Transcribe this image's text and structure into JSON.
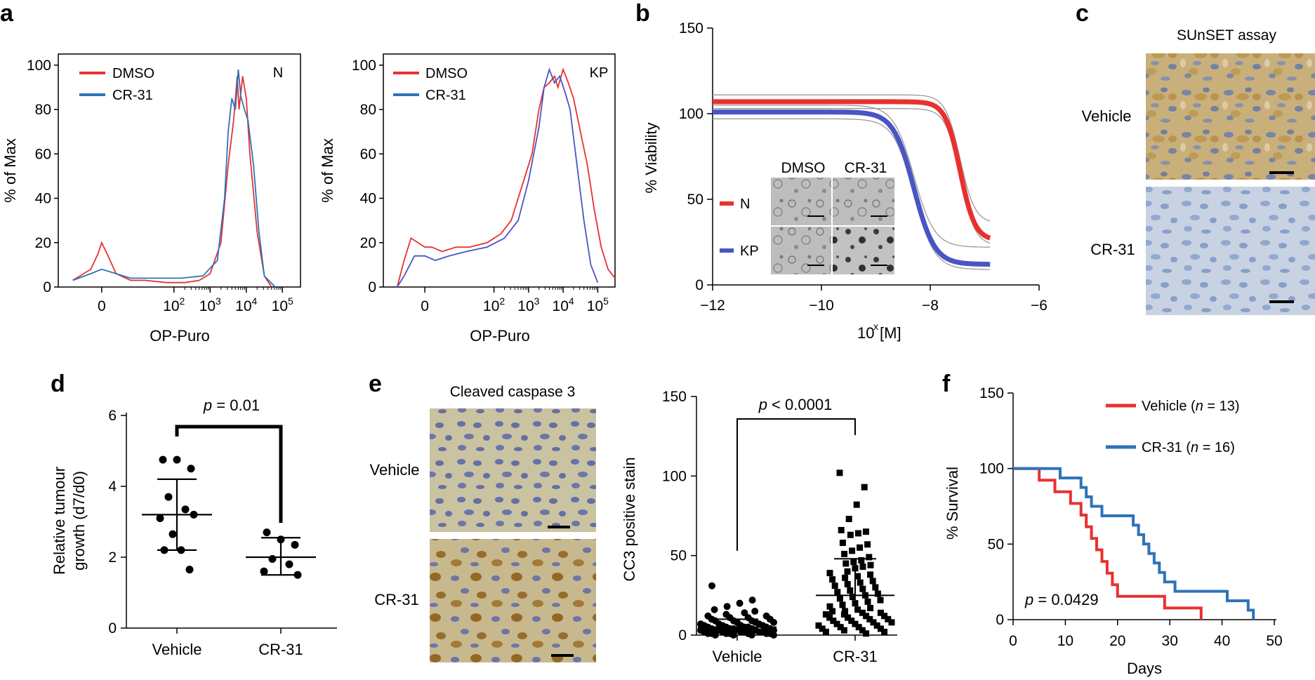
{
  "panels": {
    "a": "a",
    "b": "b",
    "c": "c",
    "d": "d",
    "e": "e",
    "f": "f"
  },
  "colors": {
    "red": "#e8312f",
    "blue": "#2e73b8",
    "purple": "#4a55c4",
    "grey": "#9a9a9a"
  },
  "chart_data": [
    {
      "id": "a1",
      "type": "line",
      "title": "N",
      "xlabel": "OP-Puro",
      "ylabel": "% of Max",
      "xticks": [
        "0",
        "10^2",
        "10^3",
        "10^4",
        "10^5"
      ],
      "yticks": [
        0,
        20,
        40,
        60,
        80,
        100
      ],
      "ylim": [
        0,
        105
      ],
      "series": [
        {
          "name": "DMSO",
          "color": "#e8312f",
          "points": [
            [
              -0.8,
              3
            ],
            [
              -0.3,
              8
            ],
            [
              -0.1,
              15
            ],
            [
              0,
              20
            ],
            [
              0.15,
              15
            ],
            [
              0.4,
              6
            ],
            [
              0.8,
              3
            ],
            [
              1.2,
              3
            ],
            [
              1.8,
              2
            ],
            [
              2.3,
              2
            ],
            [
              2.7,
              3
            ],
            [
              3.0,
              6
            ],
            [
              3.3,
              20
            ],
            [
              3.5,
              55
            ],
            [
              3.65,
              75
            ],
            [
              3.75,
              95
            ],
            [
              3.8,
              80
            ],
            [
              3.9,
              95
            ],
            [
              4.0,
              85
            ],
            [
              4.1,
              60
            ],
            [
              4.3,
              25
            ],
            [
              4.5,
              5
            ],
            [
              4.7,
              0
            ]
          ]
        },
        {
          "name": "CR-31",
          "color": "#2e73b8",
          "points": [
            [
              -0.8,
              3
            ],
            [
              -0.3,
              6
            ],
            [
              0,
              8
            ],
            [
              0.4,
              6
            ],
            [
              0.8,
              4
            ],
            [
              1.5,
              4
            ],
            [
              2.2,
              4
            ],
            [
              2.8,
              5
            ],
            [
              3.2,
              12
            ],
            [
              3.4,
              40
            ],
            [
              3.5,
              70
            ],
            [
              3.6,
              85
            ],
            [
              3.7,
              80
            ],
            [
              3.78,
              98
            ],
            [
              3.85,
              86
            ],
            [
              3.95,
              80
            ],
            [
              4.05,
              75
            ],
            [
              4.2,
              55
            ],
            [
              4.35,
              25
            ],
            [
              4.5,
              5
            ],
            [
              4.8,
              0
            ]
          ]
        }
      ]
    },
    {
      "id": "a2",
      "type": "line",
      "title": "KP",
      "xlabel": "OP-Puro",
      "ylabel": "% of Max",
      "xticks": [
        "0",
        "10^2",
        "10^3",
        "10^4",
        "10^5"
      ],
      "yticks": [
        0,
        20,
        40,
        60,
        80,
        100
      ],
      "ylim": [
        0,
        105
      ],
      "series": [
        {
          "name": "DMSO",
          "color": "#e8312f",
          "points": [
            [
              -0.8,
              0
            ],
            [
              -0.6,
              12
            ],
            [
              -0.4,
              22
            ],
            [
              -0.2,
              20
            ],
            [
              0,
              18
            ],
            [
              0.2,
              18
            ],
            [
              0.5,
              16
            ],
            [
              0.9,
              18
            ],
            [
              1.3,
              18
            ],
            [
              1.8,
              20
            ],
            [
              2.2,
              24
            ],
            [
              2.5,
              30
            ],
            [
              2.8,
              45
            ],
            [
              3.1,
              60
            ],
            [
              3.3,
              80
            ],
            [
              3.45,
              90
            ],
            [
              3.6,
              92
            ],
            [
              3.75,
              95
            ],
            [
              3.85,
              90
            ],
            [
              4.0,
              98
            ],
            [
              4.15,
              92
            ],
            [
              4.3,
              85
            ],
            [
              4.5,
              70
            ],
            [
              4.7,
              55
            ],
            [
              4.9,
              35
            ],
            [
              5.1,
              18
            ],
            [
              5.3,
              8
            ],
            [
              5.5,
              4
            ]
          ]
        },
        {
          "name": "CR-31",
          "color": "#4a55c4",
          "points": [
            [
              -0.8,
              0
            ],
            [
              -0.6,
              5
            ],
            [
              -0.3,
              14
            ],
            [
              0,
              14
            ],
            [
              0.3,
              12
            ],
            [
              0.7,
              14
            ],
            [
              1.2,
              16
            ],
            [
              1.8,
              18
            ],
            [
              2.3,
              22
            ],
            [
              2.7,
              30
            ],
            [
              3.0,
              48
            ],
            [
              3.3,
              72
            ],
            [
              3.45,
              90
            ],
            [
              3.6,
              98
            ],
            [
              3.75,
              92
            ],
            [
              3.9,
              95
            ],
            [
              4.05,
              88
            ],
            [
              4.2,
              80
            ],
            [
              4.4,
              55
            ],
            [
              4.6,
              30
            ],
            [
              4.8,
              10
            ],
            [
              5.0,
              2
            ]
          ]
        }
      ]
    },
    {
      "id": "b",
      "type": "line",
      "xlabel_base": "10",
      "xlabel_sup": "x",
      "xlabel_tail": "[M]",
      "ylabel": "% Viability",
      "xlim": [
        -12,
        -6
      ],
      "ylim": [
        0,
        150
      ],
      "xticks": [
        "−12",
        "−10",
        "−8",
        "−6"
      ],
      "yticks": [
        0,
        50,
        100,
        150
      ],
      "series": [
        {
          "name": "N",
          "color": "#e8312f",
          "top": 107,
          "bottom": 26,
          "ec50": -7.45,
          "hill": 3.2
        },
        {
          "name": "KP",
          "color": "#4a55c4",
          "top": 101,
          "bottom": 12,
          "ec50": -8.3,
          "hill": 2.3
        }
      ],
      "inset_labels": [
        "DMSO",
        "CR-31"
      ]
    },
    {
      "id": "d",
      "type": "scatter",
      "ylabel_line1": "Relative tumour",
      "ylabel_line2": "growth (d7/d0)",
      "categories": [
        "Vehicle",
        "CR-31"
      ],
      "ylim": [
        0,
        6
      ],
      "yticks": [
        0,
        2,
        4,
        6
      ],
      "pvalue_label": "p",
      "pvalue_text": " = 0.01",
      "groups": [
        {
          "name": "Vehicle",
          "mean": 3.2,
          "sd_low": 2.2,
          "sd_high": 4.2,
          "values": [
            4.75,
            4.75,
            4.5,
            3.7,
            3.35,
            3.1,
            3.2,
            2.65,
            2.2,
            2.2,
            1.65
          ]
        },
        {
          "name": "CR-31",
          "mean": 2.0,
          "sd_low": 1.5,
          "sd_high": 2.55,
          "values": [
            2.7,
            2.5,
            2.35,
            1.95,
            1.8,
            1.6,
            1.5
          ]
        }
      ]
    },
    {
      "id": "e",
      "type": "scatter",
      "ylabel": "CC3 positive stain",
      "categories": [
        "Vehicle",
        "CR-31"
      ],
      "ylim": [
        0,
        150
      ],
      "yticks": [
        0,
        50,
        100,
        150
      ],
      "pvalue_label": "p",
      "pvalue_text": " < 0.0001",
      "groups": [
        {
          "name": "Vehicle",
          "mean": 5,
          "sd_high": 10,
          "sd_low": 0,
          "values": [
            31,
            22,
            20,
            18,
            16,
            15,
            14,
            13,
            12,
            12,
            11,
            11,
            10,
            10,
            9,
            9,
            9,
            8,
            8,
            8,
            7,
            7,
            7,
            6,
            6,
            6,
            6,
            5,
            5,
            5,
            5,
            5,
            4,
            4,
            4,
            4,
            4,
            3,
            3,
            3,
            3,
            3,
            3,
            2,
            2,
            2,
            2,
            2,
            2,
            1,
            1,
            1,
            1,
            1,
            1,
            1,
            0,
            0,
            0,
            0
          ]
        },
        {
          "name": "CR-31",
          "mean": 25,
          "sd_high": 48,
          "sd_low": 3,
          "values": [
            102,
            93,
            82,
            73,
            66,
            65,
            64,
            63,
            58,
            57,
            55,
            53,
            51,
            49,
            47,
            46,
            45,
            44,
            43,
            42,
            40,
            39,
            38,
            37,
            36,
            35,
            34,
            33,
            32,
            31,
            30,
            29,
            28,
            27,
            26,
            25,
            24,
            23,
            22,
            21,
            20,
            19,
            18,
            17,
            16,
            15,
            15,
            14,
            14,
            13,
            13,
            12,
            12,
            11,
            11,
            10,
            10,
            9,
            9,
            8,
            8,
            7,
            7,
            6,
            6,
            5,
            5,
            4,
            4,
            3,
            3,
            2,
            2,
            1
          ]
        }
      ]
    },
    {
      "id": "f",
      "type": "line",
      "xlabel": "Days",
      "ylabel": "% Survival",
      "xlim": [
        0,
        50
      ],
      "ylim": [
        0,
        150
      ],
      "xticks": [
        0,
        10,
        20,
        30,
        40,
        50
      ],
      "yticks": [
        0,
        50,
        100,
        150
      ],
      "pvalue_label": "p",
      "pvalue_text": " = 0.0429",
      "series": [
        {
          "name": "Vehicle",
          "n_label": "n",
          "n_text": " = 13",
          "color": "#e8312f",
          "steps": [
            [
              0,
              100
            ],
            [
              5,
              92.3
            ],
            [
              8,
              84.6
            ],
            [
              11,
              76.9
            ],
            [
              13,
              69.2
            ],
            [
              14,
              61.5
            ],
            [
              15,
              53.8
            ],
            [
              16,
              46.2
            ],
            [
              17,
              38.5
            ],
            [
              18,
              30.8
            ],
            [
              19,
              23.1
            ],
            [
              20,
              15.4
            ],
            [
              29,
              7.7
            ],
            [
              36,
              0
            ]
          ]
        },
        {
          "name": "CR-31",
          "n_label": "n",
          "n_text": " = 16",
          "color": "#2e73b8",
          "steps": [
            [
              0,
              100
            ],
            [
              9,
              93.75
            ],
            [
              13,
              87.5
            ],
            [
              14,
              81.25
            ],
            [
              15,
              75
            ],
            [
              17,
              68.75
            ],
            [
              23,
              62.5
            ],
            [
              24,
              56.25
            ],
            [
              25,
              50
            ],
            [
              26,
              43.75
            ],
            [
              27,
              37.5
            ],
            [
              28,
              31.25
            ],
            [
              29,
              25
            ],
            [
              31,
              18.75
            ],
            [
              41,
              12.5
            ],
            [
              45,
              6.25
            ],
            [
              46,
              0
            ]
          ]
        }
      ]
    }
  ],
  "legends": {
    "dmso": "DMSO",
    "cr31": "CR-31",
    "n": "N",
    "kp": "KP",
    "vehicle": "Vehicle"
  },
  "labels": {
    "sunset_title": "SUnSET assay",
    "c_vehicle": "Vehicle",
    "c_cr31": "CR-31",
    "cc3_title": "Cleaved caspase 3",
    "e_vehicle": "Vehicle",
    "e_cr31": "CR-31"
  }
}
